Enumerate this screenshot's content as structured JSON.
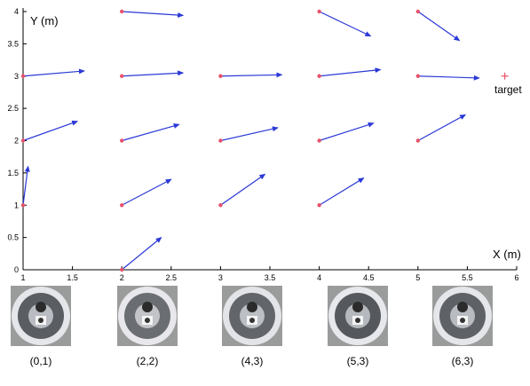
{
  "chart_data": {
    "type": "quiver",
    "xlabel": "X (m)",
    "ylabel": "Y (m)",
    "xlim": [
      1,
      6
    ],
    "ylim": [
      0,
      4
    ],
    "xticks": [
      "1",
      "1.5",
      "2",
      "2.5",
      "3",
      "3.5",
      "4",
      "4.5",
      "5",
      "5.5",
      "6"
    ],
    "yticks": [
      "0",
      "0.5",
      "1",
      "1.5",
      "2",
      "2.5",
      "3",
      "3.5",
      "4"
    ],
    "target": {
      "x": 5.88,
      "y": 3,
      "label": "target"
    },
    "vectors": [
      {
        "x": 1,
        "y": 1,
        "dx": 0.05,
        "dy": 0.6
      },
      {
        "x": 1,
        "y": 2,
        "dx": 0.55,
        "dy": 0.3
      },
      {
        "x": 1,
        "y": 3,
        "dx": 0.62,
        "dy": 0.08
      },
      {
        "x": 2,
        "y": 0,
        "dx": 0.4,
        "dy": 0.5
      },
      {
        "x": 2,
        "y": 1,
        "dx": 0.5,
        "dy": 0.4
      },
      {
        "x": 2,
        "y": 2,
        "dx": 0.58,
        "dy": 0.25
      },
      {
        "x": 2,
        "y": 3,
        "dx": 0.62,
        "dy": 0.05
      },
      {
        "x": 2,
        "y": 4,
        "dx": 0.62,
        "dy": -0.06
      },
      {
        "x": 3,
        "y": 1,
        "dx": 0.45,
        "dy": 0.48
      },
      {
        "x": 3,
        "y": 2,
        "dx": 0.58,
        "dy": 0.2
      },
      {
        "x": 3,
        "y": 3,
        "dx": 0.62,
        "dy": 0.02
      },
      {
        "x": 4,
        "y": 1,
        "dx": 0.45,
        "dy": 0.42
      },
      {
        "x": 4,
        "y": 2,
        "dx": 0.55,
        "dy": 0.27
      },
      {
        "x": 4,
        "y": 3,
        "dx": 0.62,
        "dy": 0.1
      },
      {
        "x": 4,
        "y": 4,
        "dx": 0.52,
        "dy": -0.38
      },
      {
        "x": 5,
        "y": 2,
        "dx": 0.48,
        "dy": 0.4
      },
      {
        "x": 5,
        "y": 3,
        "dx": 0.62,
        "dy": -0.03
      },
      {
        "x": 5,
        "y": 4,
        "dx": 0.42,
        "dy": -0.45
      }
    ],
    "colors": {
      "arrow": "#2b39d6",
      "point": "#e8506a",
      "target": "#e8506a"
    }
  },
  "thumbnails": [
    {
      "caption": "(0,1)"
    },
    {
      "caption": "(2,2)"
    },
    {
      "caption": "(4,3)"
    },
    {
      "caption": "(5,3)"
    },
    {
      "caption": "(6,3)"
    }
  ]
}
